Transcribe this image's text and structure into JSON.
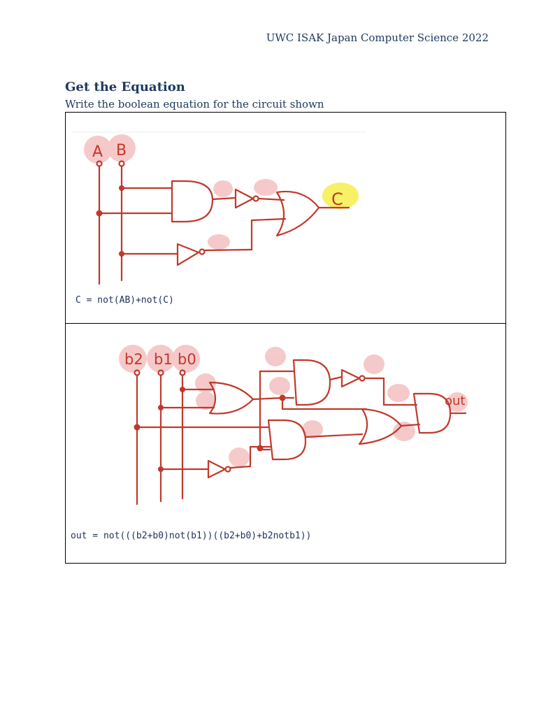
{
  "header": {
    "text": "UWC ISAK Japan Computer Science 2022"
  },
  "section": {
    "title": "Get the Equation",
    "instruction": "Write the boolean equation for the circuit shown"
  },
  "circuit1": {
    "labels": {
      "a": "A",
      "b": "B",
      "output": "C"
    },
    "answer": "C = not(AB)+not(C)"
  },
  "circuit2": {
    "labels": {
      "b2": "b2",
      "b1": "b1",
      "b0": "b0",
      "output": "out"
    },
    "answer": "out = not(((b2+b0)not(b1))((b2+b0)+b2notb1))"
  },
  "colors": {
    "ink": "#c0392b",
    "highlight_red": "#f2b8b8",
    "highlight_yellow": "#f5ef4a",
    "text": "#1f3a60"
  }
}
